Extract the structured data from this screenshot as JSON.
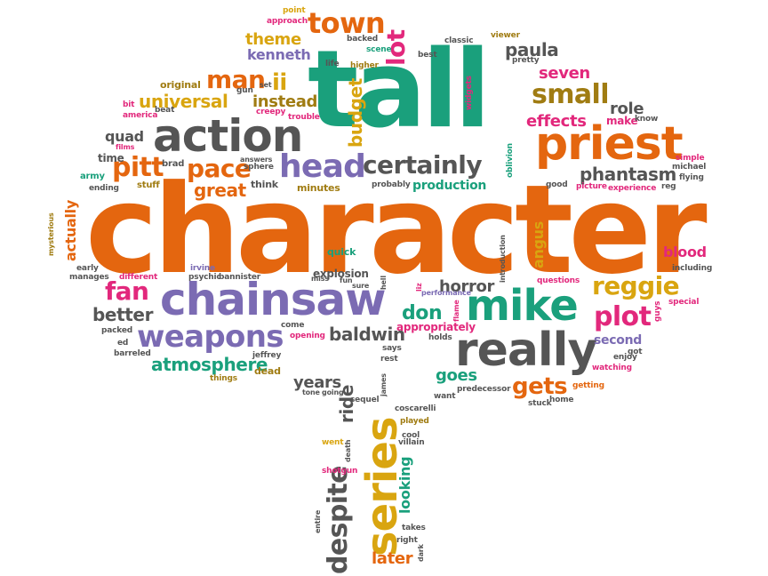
{
  "colors": {
    "orange": "#e4660f",
    "green": "#1aa07c",
    "purple": "#7b6bb3",
    "gray": "#555555",
    "pink": "#e2287c",
    "gold": "#d9a510",
    "brown": "#a07c12"
  },
  "words": {
    "character": "character",
    "tall": "tall",
    "chainsaw": "chainsaw",
    "action": "action",
    "priest": "priest",
    "really": "really",
    "mike": "mike",
    "series": "series",
    "weapons": "weapons",
    "head": "head",
    "certainly": "certainly",
    "town": "town",
    "despite": "despite",
    "small": "small",
    "pace": "pace",
    "pitt": "pitt",
    "man": "man",
    "fan": "fan",
    "reggie": "reggie",
    "plot": "plot",
    "gets": "gets",
    "phantasm": "phantasm",
    "universal": "universal",
    "atmosphere": "atmosphere",
    "baldwin": "baldwin",
    "great": "great",
    "better": "better",
    "theme": "theme",
    "kenneth": "kenneth",
    "lot": "lot",
    "budget": "budget",
    "ii": "ii",
    "instead": "instead",
    "paula": "paula",
    "seven": "seven",
    "effects": "effects",
    "role": "role",
    "make": "make",
    "horror": "horror",
    "don": "don",
    "goes": "goes",
    "production": "production",
    "years": "years",
    "ride": "ride",
    "looking": "looking",
    "later": "later",
    "angus": "angus",
    "actually": "actually",
    "quad": "quad",
    "blood": "blood",
    "second": "second",
    "appropriately": "appropriately",
    "explosion": "explosion",
    "minutes": "minutes",
    "quick": "quick",
    "think": "think",
    "sphere": "sphere",
    "brad": "brad",
    "time": "time",
    "stuff": "stuff",
    "army": "army",
    "ending": "ending",
    "films": "films",
    "america": "america",
    "bit": "bit",
    "beat": "beat",
    "original": "original",
    "gun": "gun",
    "creepy": "creepy",
    "answers": "answers",
    "set": "set",
    "trouble": "trouble",
    "life": "life",
    "higher": "higher",
    "scene": "scene",
    "backed": "backed",
    "approach": "approach",
    "point": "point",
    "best": "best",
    "classic": "classic",
    "viewer": "viewer",
    "pretty": "pretty",
    "widgets": "widgets",
    "oblivion": "oblivion",
    "know": "know",
    "simple": "simple",
    "michael": "michael",
    "flying": "flying",
    "experience": "experience",
    "reg": "reg",
    "picture": "picture",
    "good": "good",
    "probably": "probably",
    "including": "including",
    "special": "special",
    "guys": "guys",
    "got": "got",
    "enjoy": "enjoy",
    "watching": "watching",
    "getting": "getting",
    "home": "home",
    "stuck": "stuck",
    "predecessor": "predecessor",
    "want": "want",
    "holds": "holds",
    "says": "says",
    "rest": "rest",
    "questions": "questions",
    "introduction": "introduction",
    "performance": "performance",
    "flame": "flame",
    "liz": "liz",
    "hell": "hell",
    "fun": "fun",
    "sure": "sure",
    "irvine": "irvine",
    "psychic": "psychic",
    "bannister": "bannister",
    "different": "different",
    "early": "early",
    "manages": "manages",
    "mysterious": "mysterious",
    "packed": "packed",
    "ed": "ed",
    "barreled": "barreled",
    "come": "come",
    "opening": "opening",
    "jeffrey": "jeffrey",
    "things": "things",
    "dead": "dead",
    "tone": "tone",
    "going": "going",
    "sequel": "sequel",
    "james": "james",
    "coscarelli": "coscarelli",
    "played": "played",
    "cool": "cool",
    "villain": "villain",
    "went": "went",
    "death": "death",
    "shotgun": "shotgun",
    "entire": "entire",
    "takes": "takes",
    "right": "right",
    "dark": "dark",
    "miss": "miss"
  }
}
